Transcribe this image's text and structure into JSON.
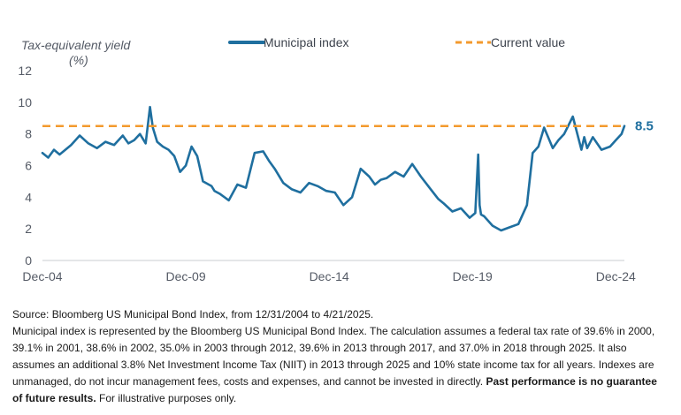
{
  "chart_data": {
    "type": "line",
    "ylabel": "Tax-equivalent yield",
    "ylabel_unit": "(%)",
    "ylim": [
      0,
      12
    ],
    "yticks": [
      "0",
      "2",
      "4",
      "6",
      "8",
      "10",
      "12"
    ],
    "xlim": [
      2005.0,
      2025.3
    ],
    "xticks": [
      {
        "label": "Dec-04",
        "x": 2005.0
      },
      {
        "label": "Dec-09",
        "x": 2010.0
      },
      {
        "label": "Dec-14",
        "x": 2015.0
      },
      {
        "label": "Dec-19",
        "x": 2020.0
      },
      {
        "label": "Dec-24",
        "x": 2025.0
      }
    ],
    "grid": false,
    "legend_position": "top",
    "end_label": "8.5",
    "series": [
      {
        "name": "Municipal index",
        "color": "#1f6f9f",
        "x": [
          2005.0,
          2005.2,
          2005.4,
          2005.6,
          2005.8,
          2006.0,
          2006.3,
          2006.6,
          2006.9,
          2007.2,
          2007.5,
          2007.8,
          2008.0,
          2008.2,
          2008.4,
          2008.6,
          2008.75,
          2008.85,
          2009.0,
          2009.2,
          2009.4,
          2009.6,
          2009.8,
          2010.0,
          2010.2,
          2010.4,
          2010.6,
          2010.9,
          2011.0,
          2011.2,
          2011.5,
          2011.8,
          2012.1,
          2012.4,
          2012.7,
          2012.9,
          2013.1,
          2013.4,
          2013.7,
          2014.0,
          2014.3,
          2014.6,
          2014.9,
          2015.2,
          2015.5,
          2015.8,
          2016.1,
          2016.4,
          2016.6,
          2016.8,
          2017.0,
          2017.3,
          2017.6,
          2017.9,
          2018.2,
          2018.5,
          2018.8,
          2019.0,
          2019.3,
          2019.6,
          2019.9,
          2020.1,
          2020.2,
          2020.25,
          2020.3,
          2020.4,
          2020.7,
          2021.0,
          2021.3,
          2021.6,
          2021.9,
          2022.1,
          2022.3,
          2022.5,
          2022.8,
          2023.0,
          2023.2,
          2023.5,
          2023.8,
          2023.9,
          2024.0,
          2024.2,
          2024.5,
          2024.8,
          2025.0,
          2025.2,
          2025.3
        ],
        "values": [
          6.8,
          6.5,
          7.0,
          6.7,
          7.0,
          7.3,
          7.9,
          7.4,
          7.1,
          7.5,
          7.3,
          7.9,
          7.4,
          7.6,
          8.0,
          7.4,
          9.7,
          8.4,
          7.5,
          7.2,
          7.0,
          6.6,
          5.6,
          6.0,
          7.2,
          6.6,
          5.0,
          4.7,
          4.4,
          4.2,
          3.8,
          4.8,
          4.6,
          6.8,
          6.9,
          6.3,
          5.8,
          4.9,
          4.5,
          4.3,
          4.9,
          4.7,
          4.4,
          4.3,
          3.5,
          4.0,
          5.8,
          5.3,
          4.8,
          5.1,
          5.2,
          5.6,
          5.3,
          6.1,
          5.3,
          4.6,
          3.9,
          3.6,
          3.1,
          3.3,
          2.7,
          3.0,
          6.7,
          3.5,
          2.9,
          2.8,
          2.2,
          1.9,
          2.1,
          2.3,
          3.5,
          6.8,
          7.2,
          8.4,
          7.1,
          7.6,
          8.0,
          9.1,
          7.0,
          7.8,
          7.1,
          7.8,
          7.0,
          7.2,
          7.6,
          8.0,
          8.5
        ]
      },
      {
        "name": "Current value",
        "color": "#f39a2e",
        "x": [
          2005.0,
          2025.3
        ],
        "values": [
          8.5,
          8.5
        ]
      }
    ]
  },
  "footnote": {
    "source": "Source: Bloomberg US Municipal Bond Index, from 12/31/2004 to 4/21/2025.",
    "body": "Municipal index is represented by the Bloomberg US Municipal Bond Index. The calculation assumes a federal tax rate of 39.6% in 2000, 39.1% in 2001, 38.6% in 2002, 35.0% in 2003 through 2012, 39.6% in 2013 through 2017, and 37.0% in 2018 through 2025. It also assumes an additional 3.8% Net Investment Income Tax (NIIT) in 2013 through 2025 and 10% state income tax for all years. Indexes are unmanaged, do not incur management fees, costs and expenses, and cannot be invested in directly.",
    "bold": "Past performance is no guarantee of future results.",
    "tail": "For illustrative purposes only."
  }
}
